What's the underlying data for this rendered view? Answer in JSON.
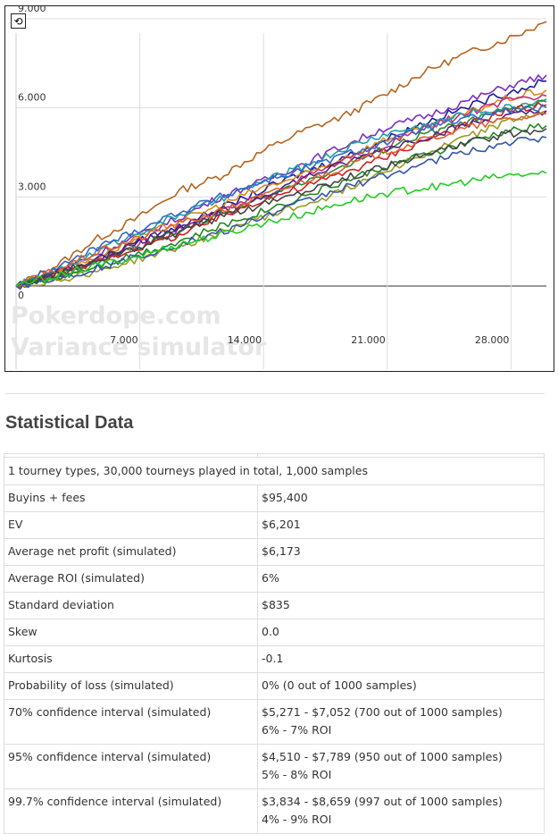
{
  "chart": {
    "refresh_icon": "refresh-icon",
    "refresh_glyph": "⟲",
    "watermark_line1": "Pokerdope.com",
    "watermark_line2": "Variance simulator"
  },
  "chart_data": {
    "type": "line",
    "xlabel": "",
    "ylabel": "",
    "x_ticks": [
      "7.000",
      "14.000",
      "21.000",
      "28.000"
    ],
    "y_ticks": [
      "9.000",
      "6.000",
      "3.000",
      "0"
    ],
    "x_tick_values": [
      7000,
      14000,
      21000,
      28000
    ],
    "y_tick_values": [
      9000,
      6000,
      3000,
      0
    ],
    "xlim": [
      0,
      30000
    ],
    "ylim": [
      -2800,
      9300
    ],
    "grid": true,
    "legend": "none",
    "series": [
      {
        "color": "#b5651d",
        "values": [
          0,
          700,
          1600,
          2300,
          3200,
          3700,
          4500,
          5200,
          5700,
          6400,
          7200,
          7800,
          8300,
          8900
        ]
      },
      {
        "color": "#7b2fbe",
        "values": [
          0,
          500,
          1100,
          1700,
          2300,
          3000,
          3500,
          4100,
          4700,
          5300,
          5700,
          6200,
          6700,
          7100
        ]
      },
      {
        "color": "#1a1aa0",
        "values": [
          0,
          400,
          900,
          1500,
          2000,
          2600,
          3200,
          3800,
          4300,
          4900,
          5500,
          6000,
          6500,
          6900
        ]
      },
      {
        "color": "#d98c1a",
        "values": [
          0,
          450,
          1000,
          1600,
          2200,
          2700,
          3300,
          3700,
          4300,
          4900,
          5300,
          5800,
          6300,
          6600
        ]
      },
      {
        "color": "#c0307a",
        "values": [
          0,
          350,
          900,
          1400,
          1900,
          2500,
          3000,
          3600,
          4200,
          4700,
          5300,
          5800,
          6200,
          6400
        ]
      },
      {
        "color": "#1ea0a0",
        "values": [
          0,
          500,
          1200,
          1800,
          2400,
          2900,
          3500,
          4000,
          4600,
          5100,
          5400,
          5800,
          6000,
          6300
        ]
      },
      {
        "color": "#2e8b2e",
        "values": [
          0,
          400,
          800,
          1300,
          1900,
          2400,
          2900,
          3500,
          4000,
          4600,
          5100,
          5500,
          5900,
          6200
        ]
      },
      {
        "color": "#cc2222",
        "values": [
          0,
          300,
          800,
          1300,
          1700,
          2300,
          2900,
          3300,
          3800,
          4300,
          4900,
          5400,
          5900,
          6100
        ]
      },
      {
        "color": "#3366cc",
        "values": [
          0,
          600,
          1300,
          1900,
          2500,
          3000,
          3500,
          3900,
          4400,
          4800,
          5300,
          5600,
          5900,
          6000
        ]
      },
      {
        "color": "#9a9a20",
        "values": [
          0,
          200,
          500,
          900,
          1300,
          1800,
          2300,
          2700,
          3200,
          3900,
          4400,
          5000,
          5500,
          5900
        ]
      },
      {
        "color": "#552288",
        "values": [
          0,
          450,
          900,
          1500,
          2000,
          2500,
          3000,
          3600,
          4100,
          4600,
          5000,
          5400,
          5700,
          5900
        ]
      },
      {
        "color": "#e06030",
        "values": [
          0,
          550,
          1150,
          1600,
          2100,
          2500,
          3000,
          3500,
          4000,
          4500,
          4900,
          5300,
          5600,
          5800
        ]
      },
      {
        "color": "#228822",
        "values": [
          0,
          300,
          700,
          1100,
          1500,
          2000,
          2500,
          3000,
          3500,
          4000,
          4400,
          4800,
          5200,
          5400
        ]
      },
      {
        "color": "#3355aa",
        "values": [
          0,
          250,
          600,
          1000,
          1400,
          1800,
          2300,
          2800,
          3300,
          3700,
          4100,
          4500,
          4800,
          5000
        ]
      },
      {
        "color": "#444444",
        "values": [
          0,
          400,
          900,
          1300,
          1800,
          2300,
          2700,
          3200,
          3600,
          4000,
          4400,
          4800,
          5100,
          5300
        ]
      },
      {
        "color": "#22cc22",
        "values": [
          0,
          350,
          700,
          1000,
          1400,
          1700,
          2100,
          2400,
          2800,
          3100,
          3300,
          3500,
          3700,
          3800
        ]
      }
    ]
  },
  "stats": {
    "title": "Statistical Data",
    "summary": "1 tourney types, 30,000 tourneys played in total, 1,000 samples",
    "rows": [
      {
        "label": "Buyins + fees",
        "value": "$95,400",
        "value2": ""
      },
      {
        "label": "EV",
        "value": "$6,201",
        "value2": ""
      },
      {
        "label": "Average net profit (simulated)",
        "value": "$6,173",
        "value2": ""
      },
      {
        "label": "Average ROI (simulated)",
        "value": "6%",
        "value2": ""
      },
      {
        "label": "Standard deviation",
        "value": "$835",
        "value2": ""
      },
      {
        "label": "Skew",
        "value": "0.0",
        "value2": ""
      },
      {
        "label": "Kurtosis",
        "value": "-0.1",
        "value2": ""
      },
      {
        "label": "Probability of loss (simulated)",
        "value": "0% (0 out of 1000 samples)",
        "value2": ""
      },
      {
        "label": "70% confidence interval (simulated)",
        "value": "$5,271 - $7,052 (700 out of 1000 samples)",
        "value2": "6% - 7% ROI"
      },
      {
        "label": "95% confidence interval (simulated)",
        "value": "$4,510 - $7,789 (950 out of 1000 samples)",
        "value2": "5% - 8% ROI"
      },
      {
        "label": "99.7% confidence interval (simulated)",
        "value": "$3,834 - $8,659 (997 out of 1000 samples)",
        "value2": "4% - 9% ROI"
      }
    ]
  }
}
